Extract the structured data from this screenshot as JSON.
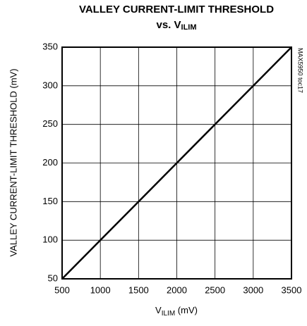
{
  "chart_data": {
    "type": "line",
    "title": {
      "line1": "VALLEY CURRENT-LIMIT THRESHOLD",
      "line2": "vs. V",
      "line2_sub": "ILIM"
    },
    "x_label": {
      "main": "V",
      "sub": "ILIM",
      "unit": " (mV)"
    },
    "y_label": "VALLEY CURRENT-LIMIT THRESHOLD (mV)",
    "annotation": "MAX5950 toc17",
    "x": [
      500,
      1000,
      1500,
      2000,
      2500,
      3000,
      3500
    ],
    "series": [
      {
        "color": "#000000",
        "values": [
          50,
          100,
          150,
          200,
          250,
          300,
          350
        ]
      }
    ],
    "xlim": [
      500,
      3500
    ],
    "xticks": [
      500,
      1000,
      1500,
      2000,
      2500,
      3000,
      3500
    ],
    "ylim": [
      50,
      350
    ],
    "yticks": [
      50,
      100,
      150,
      200,
      250,
      300,
      350
    ],
    "grid": true
  }
}
